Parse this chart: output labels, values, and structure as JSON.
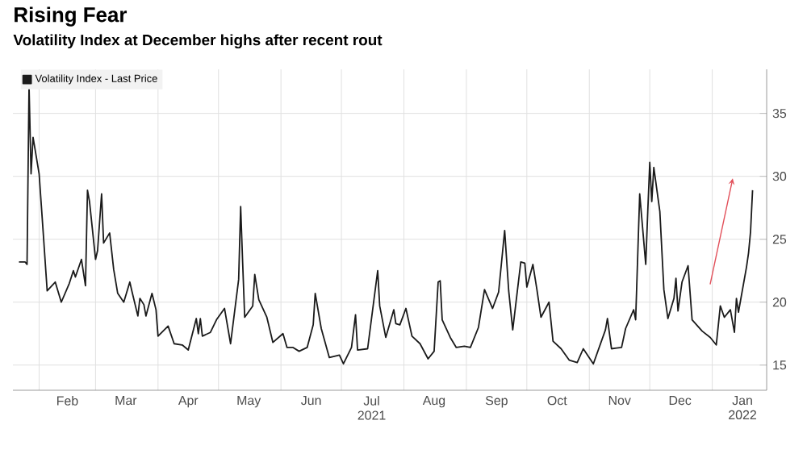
{
  "chart_data": {
    "type": "line",
    "title": "Rising Fear",
    "subtitle": "Volatility Index at December highs after recent rout",
    "x": [
      "2021-01-22",
      "2021-01-25",
      "2021-01-26",
      "2021-01-27",
      "2021-01-28",
      "2021-01-29",
      "2021-02-01",
      "2021-02-03",
      "2021-02-05",
      "2021-02-09",
      "2021-02-12",
      "2021-02-16",
      "2021-02-18",
      "2021-02-19",
      "2021-02-22",
      "2021-02-24",
      "2021-02-25",
      "2021-02-26",
      "2021-03-01",
      "2021-03-02",
      "2021-03-04",
      "2021-03-05",
      "2021-03-08",
      "2021-03-10",
      "2021-03-12",
      "2021-03-15",
      "2021-03-18",
      "2021-03-19",
      "2021-03-22",
      "2021-03-23",
      "2021-03-25",
      "2021-03-26",
      "2021-03-29",
      "2021-03-31",
      "2021-04-01",
      "2021-04-06",
      "2021-04-09",
      "2021-04-13",
      "2021-04-16",
      "2021-04-20",
      "2021-04-21",
      "2021-04-22",
      "2021-04-23",
      "2021-04-27",
      "2021-04-30",
      "2021-05-04",
      "2021-05-07",
      "2021-05-11",
      "2021-05-12",
      "2021-05-13",
      "2021-05-14",
      "2021-05-18",
      "2021-05-19",
      "2021-05-21",
      "2021-05-25",
      "2021-05-28",
      "2021-06-02",
      "2021-06-04",
      "2021-06-07",
      "2021-06-10",
      "2021-06-14",
      "2021-06-17",
      "2021-06-18",
      "2021-06-21",
      "2021-06-25",
      "2021-06-30",
      "2021-07-02",
      "2021-07-06",
      "2021-07-08",
      "2021-07-09",
      "2021-07-14",
      "2021-07-19",
      "2021-07-20",
      "2021-07-23",
      "2021-07-27",
      "2021-07-28",
      "2021-07-30",
      "2021-08-02",
      "2021-08-05",
      "2021-08-09",
      "2021-08-13",
      "2021-08-16",
      "2021-08-18",
      "2021-08-19",
      "2021-08-20",
      "2021-08-24",
      "2021-08-27",
      "2021-08-31",
      "2021-09-03",
      "2021-09-07",
      "2021-09-10",
      "2021-09-14",
      "2021-09-17",
      "2021-09-20",
      "2021-09-22",
      "2021-09-24",
      "2021-09-28",
      "2021-09-30",
      "2021-10-01",
      "2021-10-04",
      "2021-10-06",
      "2021-10-08",
      "2021-10-12",
      "2021-10-14",
      "2021-10-18",
      "2021-10-22",
      "2021-10-26",
      "2021-10-29",
      "2021-11-03",
      "2021-11-09",
      "2021-11-10",
      "2021-11-12",
      "2021-11-17",
      "2021-11-19",
      "2021-11-23",
      "2021-11-24",
      "2021-11-26",
      "2021-11-29",
      "2021-11-30",
      "2021-12-01",
      "2021-12-02",
      "2021-12-03",
      "2021-12-06",
      "2021-12-08",
      "2021-12-10",
      "2021-12-13",
      "2021-12-14",
      "2021-12-15",
      "2021-12-17",
      "2021-12-20",
      "2021-12-22",
      "2021-12-27",
      "2021-12-31",
      "2022-01-03",
      "2022-01-05",
      "2022-01-07",
      "2022-01-10",
      "2022-01-12",
      "2022-01-13",
      "2022-01-14",
      "2022-01-18",
      "2022-01-19",
      "2022-01-20",
      "2022-01-21"
    ],
    "series": [
      {
        "name": "Volatility Index - Last Price",
        "color": "#1a1a1a",
        "values": [
          23.2,
          23.2,
          23.0,
          37.2,
          30.2,
          33.1,
          30.2,
          25.6,
          20.9,
          21.6,
          20.0,
          21.5,
          22.5,
          22.0,
          23.4,
          21.3,
          28.9,
          28.0,
          23.4,
          24.1,
          28.6,
          24.7,
          25.5,
          22.6,
          20.7,
          20.0,
          21.6,
          20.9,
          18.9,
          20.3,
          19.8,
          18.9,
          20.7,
          19.4,
          17.3,
          18.1,
          16.7,
          16.6,
          16.2,
          18.7,
          17.5,
          18.7,
          17.3,
          17.6,
          18.6,
          19.5,
          16.7,
          21.8,
          27.6,
          23.1,
          18.8,
          19.7,
          22.2,
          20.2,
          18.8,
          16.8,
          17.5,
          16.4,
          16.4,
          16.1,
          16.4,
          18.2,
          20.7,
          17.9,
          15.6,
          15.8,
          15.1,
          16.4,
          19.0,
          16.2,
          16.3,
          22.5,
          19.7,
          17.2,
          19.4,
          18.3,
          18.2,
          19.5,
          17.3,
          16.7,
          15.5,
          16.1,
          21.6,
          21.7,
          18.6,
          17.2,
          16.4,
          16.5,
          16.4,
          18.0,
          21.0,
          19.5,
          20.8,
          25.7,
          20.9,
          17.8,
          23.2,
          23.1,
          21.2,
          23.0,
          21.0,
          18.8,
          20.0,
          16.9,
          16.3,
          15.4,
          15.2,
          16.3,
          15.1,
          17.8,
          18.7,
          16.3,
          16.4,
          17.9,
          19.4,
          18.6,
          28.6,
          23.0,
          27.2,
          31.1,
          28.0,
          30.7,
          27.2,
          21.0,
          18.7,
          20.3,
          21.9,
          19.3,
          21.6,
          22.9,
          18.6,
          17.7,
          17.2,
          16.6,
          19.7,
          18.8,
          19.4,
          17.6,
          20.3,
          19.2,
          22.8,
          23.9,
          25.6,
          28.9
        ]
      }
    ],
    "xlim": [
      "2021-01-19",
      "2022-01-28"
    ],
    "xticks": [
      {
        "value": "2021-02-01",
        "label": null
      },
      {
        "value": "2021-02-15",
        "label": "Feb"
      },
      {
        "value": "2021-03-01",
        "label": null
      },
      {
        "value": "2021-03-16",
        "label": "Mar"
      },
      {
        "value": "2021-04-01",
        "label": null
      },
      {
        "value": "2021-04-16",
        "label": "Apr"
      },
      {
        "value": "2021-05-01",
        "label": null
      },
      {
        "value": "2021-05-16",
        "label": "May"
      },
      {
        "value": "2021-06-01",
        "label": null
      },
      {
        "value": "2021-06-16",
        "label": "Jun"
      },
      {
        "value": "2021-07-01",
        "label": null
      },
      {
        "value": "2021-07-16",
        "label": "Jul 2021"
      },
      {
        "value": "2021-08-01",
        "label": null
      },
      {
        "value": "2021-08-16",
        "label": "Aug"
      },
      {
        "value": "2021-09-01",
        "label": null
      },
      {
        "value": "2021-09-16",
        "label": "Sep"
      },
      {
        "value": "2021-10-01",
        "label": null
      },
      {
        "value": "2021-10-16",
        "label": "Oct"
      },
      {
        "value": "2021-11-01",
        "label": null
      },
      {
        "value": "2021-11-16",
        "label": "Nov"
      },
      {
        "value": "2021-12-01",
        "label": null
      },
      {
        "value": "2021-12-16",
        "label": "Dec"
      },
      {
        "value": "2022-01-01",
        "label": null
      },
      {
        "value": "2022-01-16",
        "label": "Jan 2022"
      }
    ],
    "ylim": [
      13,
      38.5
    ],
    "yticks": [
      15,
      20,
      25,
      30,
      35
    ],
    "grid": true,
    "legend": "top left",
    "marker": "none",
    "line_style": "solid"
  }
}
